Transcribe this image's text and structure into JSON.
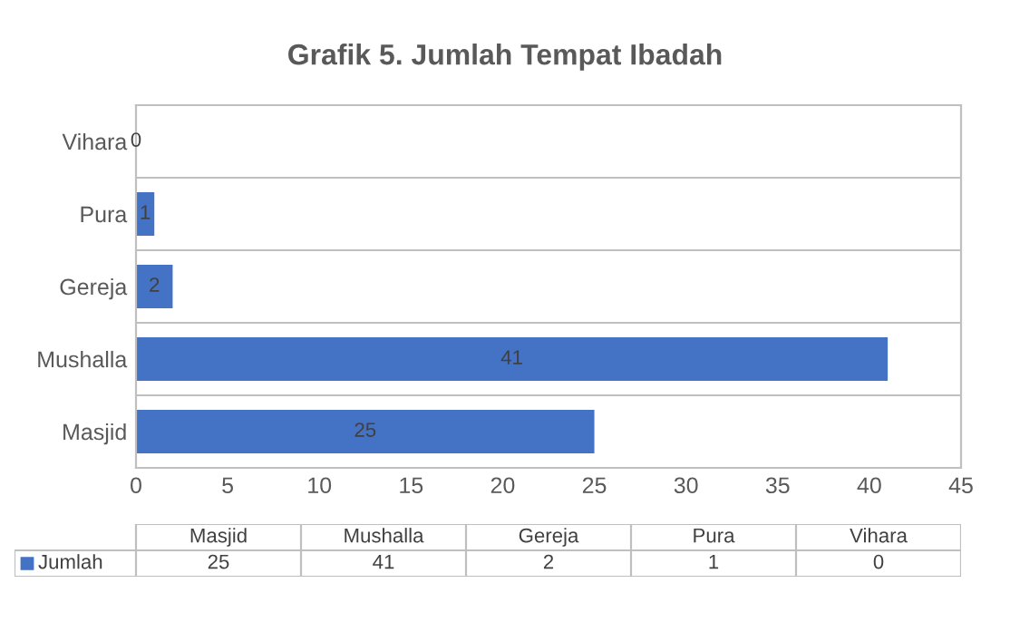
{
  "chart_data": [
    {
      "type": "bar",
      "orientation": "horizontal",
      "title": "Grafik 5. Jumlah Tempat Ibadah",
      "categories": [
        "Vihara",
        "Pura",
        "Gereja",
        "Mushalla",
        "Masjid"
      ],
      "series": [
        {
          "color": "#4472c4",
          "values": [
            0,
            1,
            2,
            41,
            25
          ]
        }
      ],
      "xlim": [
        0,
        45
      ],
      "xticks": [
        0,
        5,
        10,
        15,
        20,
        25,
        30,
        35,
        40,
        45
      ],
      "grid": "y",
      "data_labels": true
    },
    {
      "type": "other",
      "categories": [
        "Masjid",
        "Mushalla",
        "Gereja",
        "Pura",
        "Vihara"
      ],
      "series": [
        {
          "name": "Jumlah",
          "color": "#4472c4",
          "values": [
            25,
            41,
            2,
            1,
            0
          ]
        }
      ],
      "data_labels": true
    }
  ]
}
